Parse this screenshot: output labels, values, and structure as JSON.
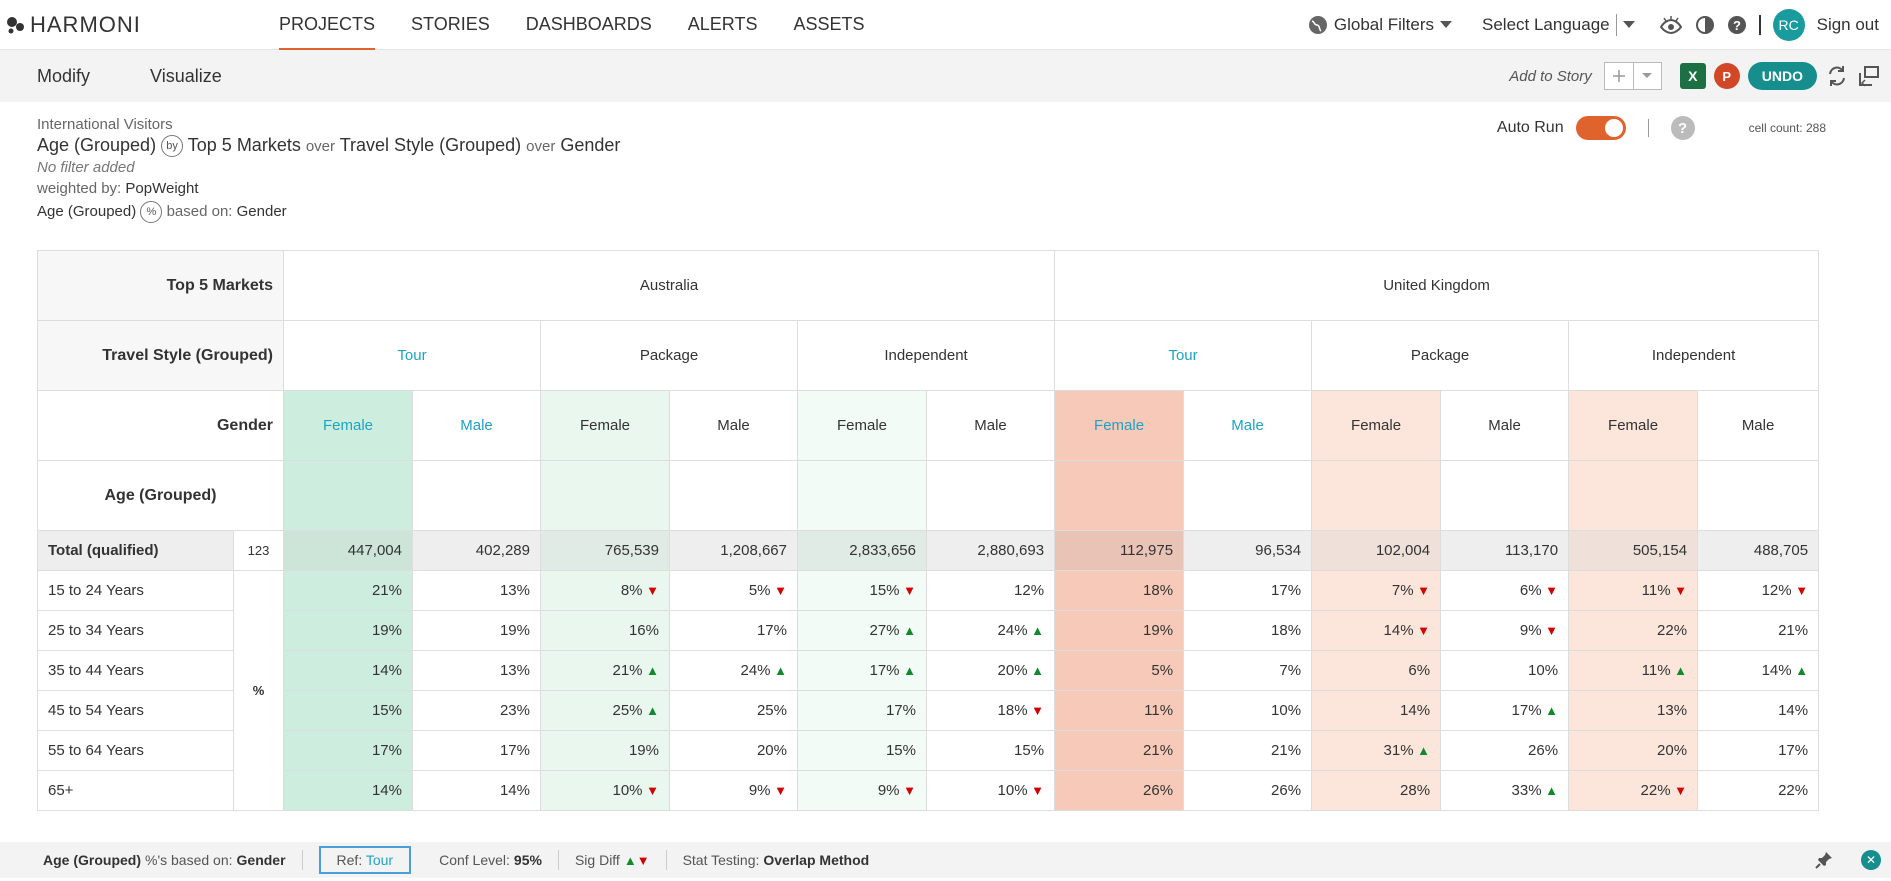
{
  "app": {
    "logo_text": "HARMONI"
  },
  "nav": {
    "tabs": [
      "PROJECTS",
      "STORIES",
      "DASHBOARDS",
      "ALERTS",
      "ASSETS"
    ],
    "global_filters": "Global Filters",
    "select_language": "Select Language",
    "avatar": "RC",
    "sign_out": "Sign out"
  },
  "toolbar": {
    "modify": "Modify",
    "visualize": "Visualize",
    "add_to_story": "Add to Story",
    "undo": "UNDO",
    "excel": "X",
    "ppt": "P"
  },
  "info": {
    "dataset": "International Visitors",
    "row_var": "Age (Grouped)",
    "by": "by",
    "col1": "Top 5 Markets",
    "over": "over",
    "col2": "Travel Style (Grouped)",
    "col3": "Gender",
    "filter": "No filter added",
    "weighted_by_label": "weighted by:",
    "weight": "PopWeight",
    "pct_var": "Age (Grouped)",
    "pct_symbol": "%",
    "based_on_label": "based on:",
    "based_on": "Gender",
    "auto_run": "Auto Run",
    "help": "?",
    "cell_count": "cell count: 288"
  },
  "table": {
    "headers": {
      "markets_label": "Top 5 Markets",
      "markets": [
        "Australia",
        "United Kingdom"
      ],
      "style_label": "Travel Style (Grouped)",
      "styles": [
        "Tour",
        "Package",
        "Independent",
        "Tour",
        "Package",
        "Independent"
      ],
      "gender_label": "Gender",
      "genders": [
        "Female",
        "Male",
        "Female",
        "Male",
        "Female",
        "Male",
        "Female",
        "Male",
        "Female",
        "Male",
        "Female",
        "Male"
      ],
      "row_var_label": "Age (Grouped)"
    },
    "total": {
      "label": "Total (qualified)",
      "base": "123",
      "values": [
        "447,004",
        "402,289",
        "765,539",
        "1,208,667",
        "2,833,656",
        "2,880,693",
        "112,975",
        "96,534",
        "102,004",
        "113,170",
        "505,154",
        "488,705"
      ]
    },
    "pct_label": "%",
    "rows": [
      {
        "label": "15 to 24 Years",
        "values": [
          "21%",
          "13%",
          "8%",
          "5%",
          "15%",
          "12%",
          "18%",
          "17%",
          "7%",
          "6%",
          "11%",
          "12%"
        ],
        "sig": [
          "",
          "",
          "down",
          "down",
          "down",
          "",
          "",
          "",
          "down",
          "down",
          "down",
          "down"
        ]
      },
      {
        "label": "25 to 34 Years",
        "values": [
          "19%",
          "19%",
          "16%",
          "17%",
          "27%",
          "24%",
          "19%",
          "18%",
          "14%",
          "9%",
          "22%",
          "21%"
        ],
        "sig": [
          "",
          "",
          "",
          "",
          "up",
          "up",
          "",
          "",
          "down",
          "down",
          "",
          ""
        ]
      },
      {
        "label": "35 to 44 Years",
        "values": [
          "14%",
          "13%",
          "21%",
          "24%",
          "17%",
          "20%",
          "5%",
          "7%",
          "6%",
          "10%",
          "11%",
          "14%"
        ],
        "sig": [
          "",
          "",
          "up",
          "up",
          "up",
          "up",
          "",
          "",
          "",
          "",
          "up",
          "up"
        ]
      },
      {
        "label": "45 to 54 Years",
        "values": [
          "15%",
          "23%",
          "25%",
          "25%",
          "17%",
          "18%",
          "11%",
          "10%",
          "14%",
          "17%",
          "13%",
          "14%"
        ],
        "sig": [
          "",
          "",
          "up",
          "",
          "",
          "down",
          "",
          "",
          "",
          "up",
          "",
          ""
        ]
      },
      {
        "label": "55 to 64 Years",
        "values": [
          "17%",
          "17%",
          "19%",
          "20%",
          "15%",
          "15%",
          "21%",
          "21%",
          "31%",
          "26%",
          "20%",
          "17%"
        ],
        "sig": [
          "",
          "",
          "",
          "",
          "",
          "",
          "",
          "",
          "up",
          "",
          "",
          ""
        ]
      },
      {
        "label": "65+",
        "values": [
          "14%",
          "14%",
          "10%",
          "9%",
          "9%",
          "10%",
          "26%",
          "26%",
          "28%",
          "33%",
          "22%",
          "22%"
        ],
        "sig": [
          "",
          "",
          "down",
          "down",
          "down",
          "down",
          "",
          "",
          "",
          "up",
          "down",
          ""
        ]
      }
    ]
  },
  "footer": {
    "pct_var": "Age (Grouped)",
    "pct_based_label": "%'s based on:",
    "pct_based": "Gender",
    "ref_label": "Ref:",
    "ref": "Tour",
    "conf_label": "Conf Level:",
    "conf": "95%",
    "sig_label": "Sig Diff",
    "stat_label": "Stat Testing:",
    "stat": "Overlap Method"
  },
  "colors": {
    "accent": "#e0622c",
    "teal": "#178e8e",
    "tour_blue": "#1ea3c4",
    "up": "#118a2c",
    "down": "#d20000"
  }
}
